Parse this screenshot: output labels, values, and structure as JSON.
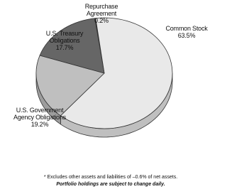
{
  "chart_data": {
    "type": "pie",
    "categories": [
      "Repurchase Agreement",
      "Common Stock",
      "U.S. Government Agency Obligations",
      "U.S. Treasury Obligations"
    ],
    "values": [
      0.2,
      63.5,
      19.2,
      17.7
    ],
    "value_labels": [
      "0.2%",
      "63.5%",
      "19.2%",
      "17.7%"
    ],
    "colors": [
      "#222222",
      "#e9e9e9",
      "#bfbfbf",
      "#666666"
    ],
    "notes": [
      "* Excludes other assets and liabilities of –0.6% of net assets.",
      "Portfolio holdings are subject to change daily."
    ]
  }
}
